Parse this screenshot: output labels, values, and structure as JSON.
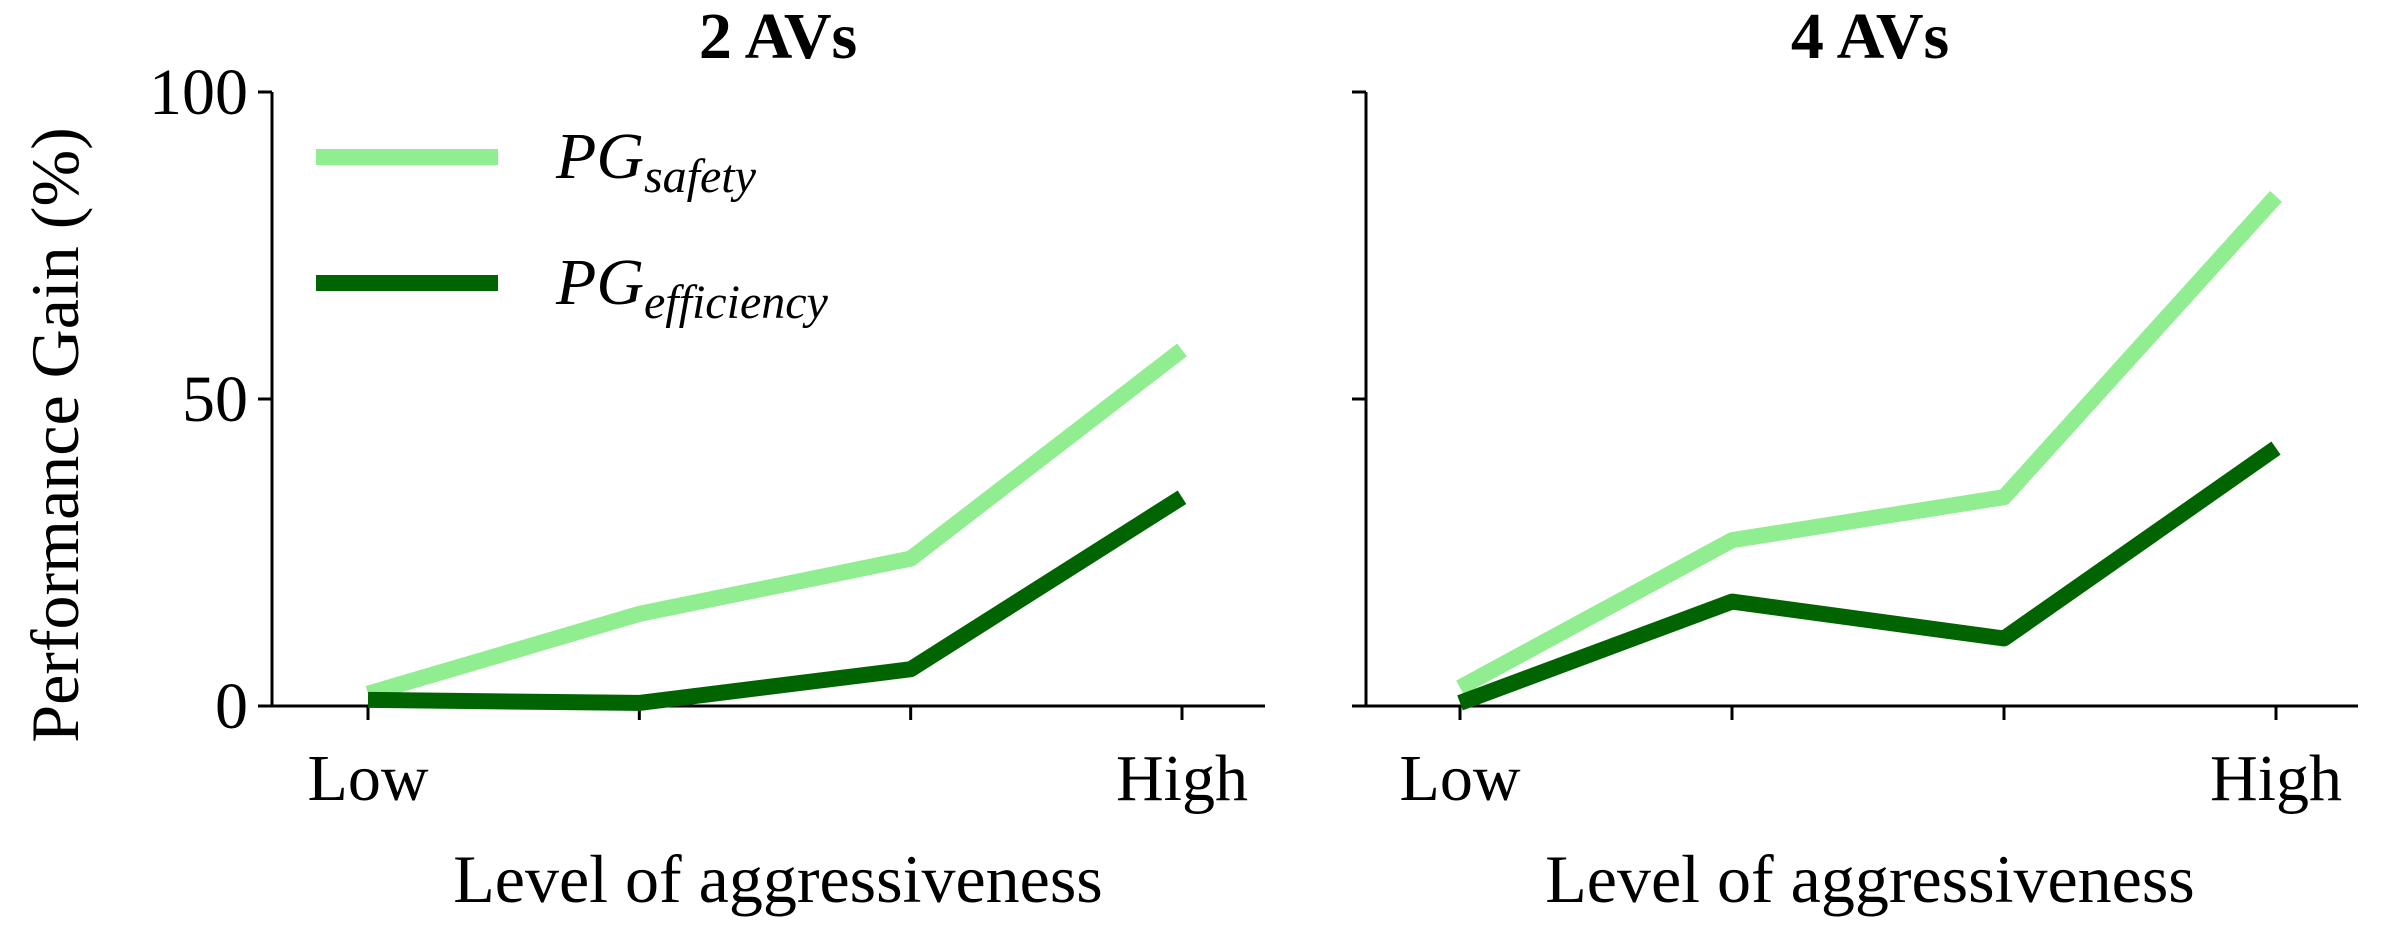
{
  "chart_data": [
    {
      "type": "line",
      "title": "2 AVs",
      "xlabel": "Level of aggressiveness",
      "ylabel": "Performance Gain (%)",
      "x": [
        1,
        2,
        3,
        4
      ],
      "x_tick_labels": [
        "Low",
        "",
        "",
        "High"
      ],
      "yticks": [
        0,
        50,
        100
      ],
      "ylim": [
        0,
        100
      ],
      "series": [
        {
          "name": "safety",
          "color": "#90ee90",
          "values": [
            2,
            15,
            24,
            58
          ]
        },
        {
          "name": "efficiency",
          "color": "#006400",
          "values": [
            1,
            0.5,
            6,
            34
          ]
        }
      ],
      "legend": {
        "position": "top-left",
        "items": [
          {
            "prefix": "PG",
            "sub": "safety",
            "color": "#90ee90"
          },
          {
            "prefix": "PG",
            "sub": "efficiency",
            "color": "#006400"
          }
        ]
      }
    },
    {
      "type": "line",
      "title": "4 AVs",
      "xlabel": "Level of aggressiveness",
      "x": [
        1,
        2,
        3,
        4
      ],
      "x_tick_labels": [
        "Low",
        "",
        "",
        "High"
      ],
      "ylim": [
        0,
        100
      ],
      "series": [
        {
          "name": "safety",
          "color": "#90ee90",
          "values": [
            3,
            27,
            34,
            83
          ]
        },
        {
          "name": "efficiency",
          "color": "#006400",
          "values": [
            0.5,
            17,
            11,
            42
          ]
        }
      ]
    }
  ]
}
